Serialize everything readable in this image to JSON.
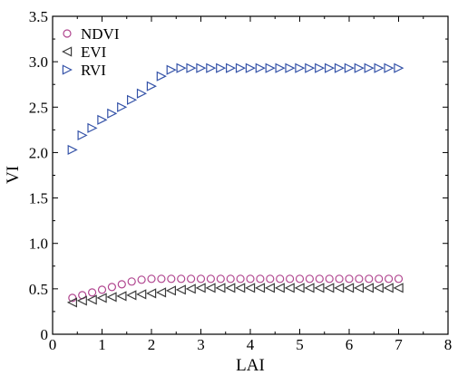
{
  "chart_data": {
    "type": "scatter",
    "title": "",
    "xlabel": "LAI",
    "ylabel": "VI",
    "xlim": [
      0,
      8
    ],
    "ylim": [
      0,
      3.5
    ],
    "xticks": [
      "0",
      "1",
      "2",
      "3",
      "4",
      "5",
      "6",
      "7",
      "8"
    ],
    "yticks": [
      "0",
      "0.5",
      "1.0",
      "1.5",
      "2.0",
      "2.5",
      "3.0",
      "3.5"
    ],
    "grid": false,
    "legend_position": "top-left",
    "x": [
      0.4,
      0.6,
      0.8,
      1.0,
      1.2,
      1.4,
      1.6,
      1.8,
      2.0,
      2.2,
      2.4,
      2.6,
      2.8,
      3.0,
      3.2,
      3.4,
      3.6,
      3.8,
      4.0,
      4.2,
      4.4,
      4.6,
      4.8,
      5.0,
      5.2,
      5.4,
      5.6,
      5.8,
      6.0,
      6.2,
      6.4,
      6.6,
      6.8,
      7.0
    ],
    "series": [
      {
        "name": "NDVI",
        "marker": "circle",
        "color": "#b0458f",
        "values": [
          0.4,
          0.43,
          0.46,
          0.49,
          0.52,
          0.55,
          0.58,
          0.6,
          0.61,
          0.61,
          0.61,
          0.61,
          0.61,
          0.61,
          0.61,
          0.61,
          0.61,
          0.61,
          0.61,
          0.61,
          0.61,
          0.61,
          0.61,
          0.61,
          0.61,
          0.61,
          0.61,
          0.61,
          0.61,
          0.61,
          0.61,
          0.61,
          0.61,
          0.61
        ]
      },
      {
        "name": "EVI",
        "marker": "triangle-left",
        "color": "#3a3a3a",
        "values": [
          0.35,
          0.37,
          0.38,
          0.4,
          0.41,
          0.42,
          0.43,
          0.44,
          0.45,
          0.46,
          0.48,
          0.49,
          0.5,
          0.51,
          0.51,
          0.51,
          0.51,
          0.51,
          0.51,
          0.51,
          0.51,
          0.51,
          0.51,
          0.51,
          0.51,
          0.51,
          0.51,
          0.51,
          0.51,
          0.51,
          0.51,
          0.51,
          0.51,
          0.51
        ]
      },
      {
        "name": "RVI",
        "marker": "triangle-right",
        "color": "#3553a8",
        "values": [
          2.03,
          2.19,
          2.27,
          2.36,
          2.43,
          2.5,
          2.58,
          2.65,
          2.73,
          2.84,
          2.91,
          2.93,
          2.93,
          2.93,
          2.93,
          2.93,
          2.93,
          2.93,
          2.93,
          2.93,
          2.93,
          2.93,
          2.93,
          2.93,
          2.93,
          2.93,
          2.93,
          2.93,
          2.93,
          2.93,
          2.93,
          2.93,
          2.93,
          2.93
        ]
      }
    ]
  }
}
